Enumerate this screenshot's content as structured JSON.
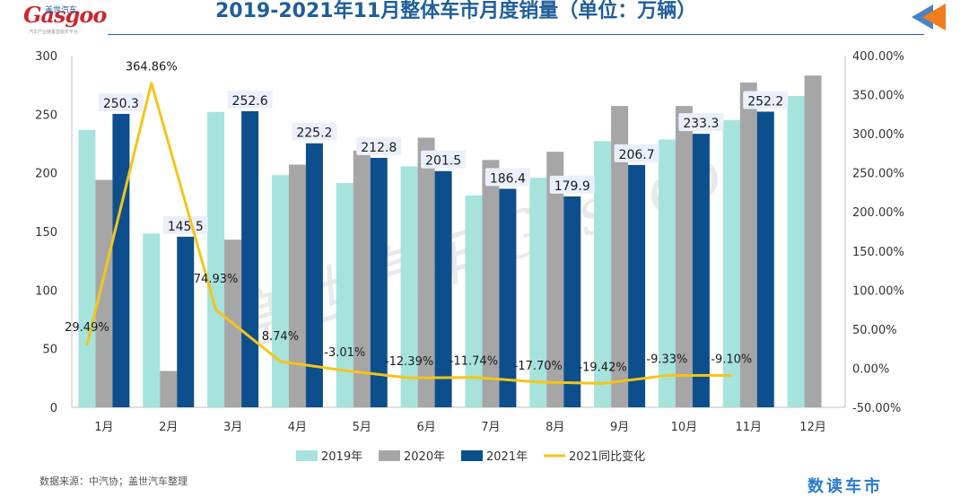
{
  "header": {
    "logo_text": "Gasgoo",
    "logo_sub": "盖世汽车",
    "logo_tagline": "汽车产业链垂直服务平台",
    "title": "2019-2021年11月整体车市月度销量（单位：万辆）"
  },
  "footer": {
    "source": "数据来源：中汽协；盖世汽车整理",
    "brand": "数读车市"
  },
  "watermark": {
    "text": "盖世汽车 Gasgoo"
  },
  "colors": {
    "s2019": "#a5e3dc",
    "s2020": "#a6a6a6",
    "s2021": "#0d4f8c",
    "yoy": "#f5c518",
    "title": "#1f5e9a",
    "logo": "#c8282e",
    "arrow_orange": "#f07d1e",
    "arrow_blue": "#4a82c6"
  },
  "chart_data": {
    "type": "bar",
    "categories": [
      "1月",
      "2月",
      "3月",
      "4月",
      "5月",
      "6月",
      "7月",
      "8月",
      "9月",
      "10月",
      "11月",
      "12月"
    ],
    "series": [
      {
        "name": "2019年",
        "values": [
          236.7,
          148.2,
          252.0,
          198.0,
          191.3,
          205.6,
          180.8,
          195.8,
          227.1,
          228.5,
          245.1,
          265.6
        ]
      },
      {
        "name": "2020年",
        "values": [
          194.0,
          31.0,
          143.0,
          207.0,
          219.0,
          230.0,
          211.0,
          218.0,
          257.0,
          257.0,
          277.0,
          283.0
        ]
      },
      {
        "name": "2021年",
        "values": [
          250.3,
          145.5,
          252.6,
          225.2,
          212.8,
          201.5,
          186.4,
          179.9,
          206.7,
          233.3,
          252.2,
          null
        ]
      }
    ],
    "line_series": {
      "name": "2021同比变化",
      "axis": "right",
      "values": [
        29.49,
        364.86,
        74.93,
        8.74,
        -3.01,
        -12.39,
        -11.74,
        -17.7,
        -19.42,
        -9.33,
        -9.1,
        null
      ],
      "labels": [
        "29.49%",
        "364.86%",
        "74.93%",
        "8.74%",
        "-3.01%",
        "-12.39%",
        "-11.74%",
        "-17.70%",
        "-19.42%",
        "-9.33%",
        "-9.10%",
        ""
      ]
    },
    "bar_labels": [
      "250.3",
      "145.5",
      "252.6",
      "225.2",
      "212.8",
      "201.5",
      "186.4",
      "179.9",
      "206.7",
      "233.3",
      "252.2",
      ""
    ],
    "y_left": {
      "min": 0,
      "max": 300,
      "ticks": [
        "0",
        "50",
        "100",
        "150",
        "200",
        "250",
        "300"
      ]
    },
    "y_right": {
      "min": -50,
      "max": 400,
      "ticks": [
        "-50.00%",
        "0.00%",
        "50.00%",
        "100.00%",
        "150.00%",
        "200.00%",
        "250.00%",
        "300.00%",
        "350.00%",
        "400.00%"
      ]
    },
    "legend": [
      "2019年",
      "2020年",
      "2021年",
      "2021同比变化"
    ],
    "legend_position": "bottom",
    "grid": false
  }
}
